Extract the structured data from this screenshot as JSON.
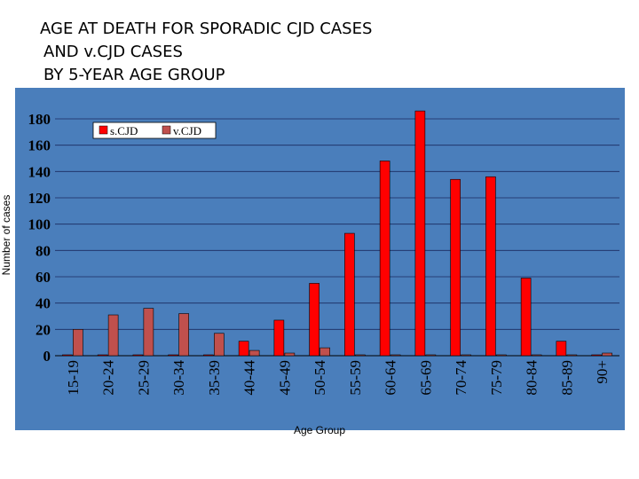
{
  "title_lines": [
    "AGE AT DEATH FOR SPORADIC CJD CASES",
    "AND v.CJD CASES",
    "BY 5-YEAR AGE GROUP"
  ],
  "colors": {
    "plot_background": "#4a7ebb",
    "frame_background": "#4a7ebb",
    "scjd": "#ff0000",
    "vcjd": "#c0504d",
    "gridline": "#1a2a60"
  },
  "chart_data": {
    "type": "bar",
    "title": "AGE AT DEATH FOR SPORADIC CJD CASES AND v.CJD CASES BY 5-YEAR AGE GROUP",
    "xlabel": "Age Group",
    "ylabel": "Number of cases",
    "ylim": [
      0,
      180
    ],
    "yticks": [
      0,
      20,
      40,
      60,
      80,
      100,
      120,
      140,
      160,
      180
    ],
    "grid": true,
    "legend_position": "top-left",
    "categories": [
      "15-19",
      "20-24",
      "25-29",
      "30-34",
      "35-39",
      "40-44",
      "45-49",
      "50-54",
      "55-59",
      "60-64",
      "65-69",
      "70-74",
      "75-79",
      "80-84",
      "85-89",
      "90+"
    ],
    "series": [
      {
        "name": "s.CJD",
        "values": [
          0,
          0,
          0,
          0,
          0,
          11,
          27,
          55,
          93,
          148,
          186,
          134,
          136,
          59,
          11,
          0
        ]
      },
      {
        "name": "v.CJD",
        "values": [
          20,
          31,
          36,
          32,
          17,
          4,
          2,
          6,
          0,
          0,
          0,
          0,
          0,
          0,
          0,
          2
        ]
      }
    ]
  }
}
